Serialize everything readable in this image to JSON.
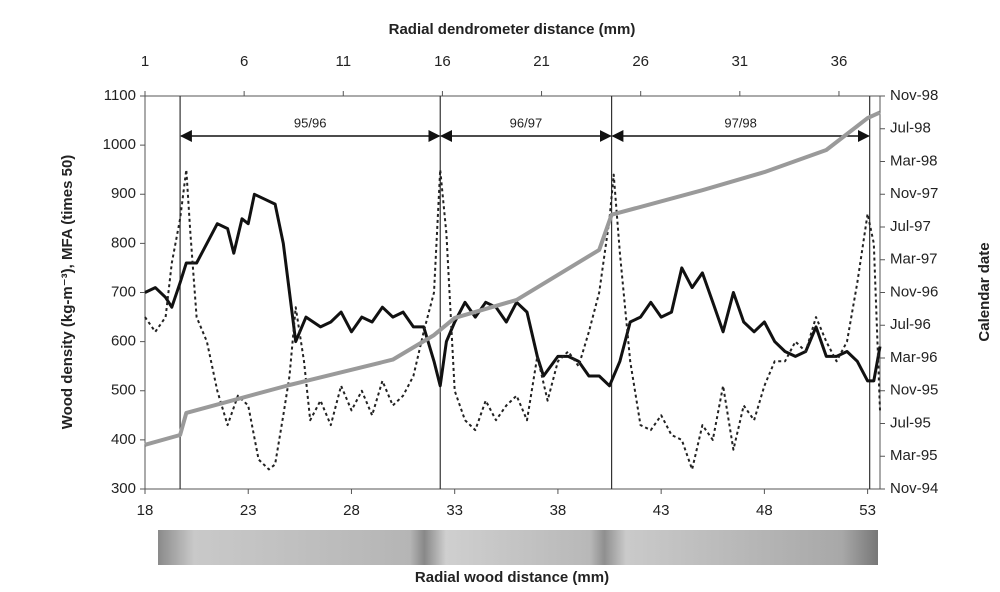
{
  "chart_data": {
    "type": "line",
    "x_title": "Radial wood distance (mm)",
    "x2_title": "Radial dendrometer distance (mm)",
    "y_title": "Wood density (kg-m⁻³),  MFA (times 50)",
    "y2_title": "Calendar date",
    "xlim": [
      18,
      53.6
    ],
    "xticks": [
      18,
      23,
      28,
      33,
      38,
      43,
      48,
      53
    ],
    "x2lim": [
      1,
      38.07
    ],
    "x2ticks": [
      1,
      6,
      11,
      16,
      21,
      26,
      31,
      36
    ],
    "ylim": [
      300,
      1100
    ],
    "yticks": [
      300,
      400,
      500,
      600,
      700,
      800,
      900,
      1000,
      1100
    ],
    "y2lim": [
      0,
      48
    ],
    "y2ticks": [
      {
        "value": 0,
        "label": "Nov-94"
      },
      {
        "value": 4,
        "label": "Mar-95"
      },
      {
        "value": 8,
        "label": "Jul-95"
      },
      {
        "value": 12,
        "label": "Nov-95"
      },
      {
        "value": 16,
        "label": "Mar-96"
      },
      {
        "value": 20,
        "label": "Jul-96"
      },
      {
        "value": 24,
        "label": "Nov-96"
      },
      {
        "value": 28,
        "label": "Mar-97"
      },
      {
        "value": 32,
        "label": "Jul-97"
      },
      {
        "value": 36,
        "label": "Nov-97"
      },
      {
        "value": 40,
        "label": "Mar-98"
      },
      {
        "value": 44,
        "label": "Jul-98"
      },
      {
        "value": 48,
        "label": "Nov-98"
      }
    ],
    "season_boundaries": [
      19.7,
      32.3,
      40.6,
      53.1
    ],
    "seasons": [
      "95/96",
      "96/97",
      "97/98"
    ],
    "series": [
      {
        "color": "#111111",
        "dash": "none",
        "width": 3,
        "x": [
          18,
          18.5,
          19,
          19.3,
          19.7,
          20,
          20.5,
          21,
          21.5,
          22,
          22.3,
          22.7,
          23,
          23.3,
          23.8,
          24.3,
          24.7,
          25,
          25.3,
          25.8,
          26.5,
          27,
          27.5,
          28,
          28.5,
          29,
          29.5,
          30,
          30.5,
          31,
          31.5,
          32,
          32.3,
          32.6,
          33,
          33.5,
          34,
          34.5,
          35,
          35.5,
          36,
          36.5,
          37,
          37.3,
          38,
          38.5,
          39,
          39.5,
          40,
          40.5,
          41,
          41.5,
          42,
          42.5,
          43,
          43.5,
          44,
          44.5,
          45,
          45.5,
          46,
          46.5,
          47,
          47.5,
          48,
          48.5,
          49,
          49.5,
          50,
          50.5,
          51,
          51.5,
          52,
          52.5,
          53,
          53.3,
          53.6
        ],
        "values": [
          700,
          710,
          690,
          670,
          720,
          760,
          760,
          800,
          840,
          830,
          780,
          850,
          840,
          900,
          890,
          880,
          800,
          700,
          600,
          650,
          630,
          640,
          660,
          620,
          650,
          640,
          670,
          650,
          660,
          630,
          630,
          560,
          510,
          600,
          640,
          680,
          650,
          680,
          670,
          640,
          680,
          660,
          570,
          530,
          570,
          570,
          560,
          530,
          530,
          510,
          560,
          640,
          650,
          680,
          650,
          660,
          750,
          710,
          740,
          680,
          620,
          700,
          640,
          620,
          640,
          600,
          580,
          570,
          580,
          630,
          570,
          570,
          580,
          560,
          520,
          520,
          590
        ]
      },
      {
        "color": "#222222",
        "dash": "3 3",
        "width": 2,
        "x": [
          18,
          18.5,
          19,
          19.3,
          19.7,
          20,
          20.2,
          20.5,
          21,
          21.5,
          22,
          22.5,
          23,
          23.5,
          24,
          24.3,
          24.7,
          25,
          25.3,
          25.7,
          26,
          26.5,
          27,
          27.5,
          28,
          28.5,
          29,
          29.5,
          30,
          30.5,
          31,
          31.5,
          32,
          32.3,
          32.6,
          33,
          33.5,
          34,
          34.5,
          35,
          35.5,
          36,
          36.5,
          37,
          37.5,
          38,
          38.5,
          39,
          39.5,
          40,
          40.5,
          40.7,
          41,
          41.5,
          42,
          42.5,
          43,
          43.5,
          44,
          44.5,
          45,
          45.5,
          46,
          46.5,
          47,
          47.5,
          48,
          48.5,
          49,
          49.5,
          50,
          50.5,
          51,
          51.5,
          52,
          52.5,
          53,
          53.3,
          53.6
        ],
        "values": [
          650,
          620,
          650,
          760,
          850,
          950,
          820,
          650,
          600,
          500,
          430,
          490,
          470,
          360,
          340,
          350,
          450,
          530,
          670,
          560,
          440,
          480,
          430,
          510,
          460,
          500,
          450,
          520,
          470,
          490,
          530,
          620,
          700,
          950,
          820,
          500,
          440,
          420,
          480,
          440,
          470,
          490,
          440,
          570,
          480,
          560,
          580,
          550,
          620,
          700,
          850,
          940,
          780,
          560,
          430,
          420,
          450,
          410,
          400,
          340,
          430,
          400,
          510,
          380,
          470,
          440,
          510,
          560,
          560,
          600,
          580,
          650,
          600,
          560,
          600,
          720,
          860,
          800,
          460
        ]
      },
      {
        "color": "#9a9a9a",
        "dash": "none",
        "width": 4,
        "axis": "y2",
        "x": [
          18,
          19.7,
          20,
          25,
          30,
          32,
          33,
          36,
          40,
          40.6,
          45,
          48,
          51,
          53,
          53.6
        ],
        "values": [
          5.4,
          6.6,
          9.3,
          12.7,
          15.8,
          18.8,
          20.9,
          23.1,
          29.2,
          33.5,
          36.5,
          38.7,
          41.4,
          45.3,
          46
        ]
      }
    ]
  }
}
